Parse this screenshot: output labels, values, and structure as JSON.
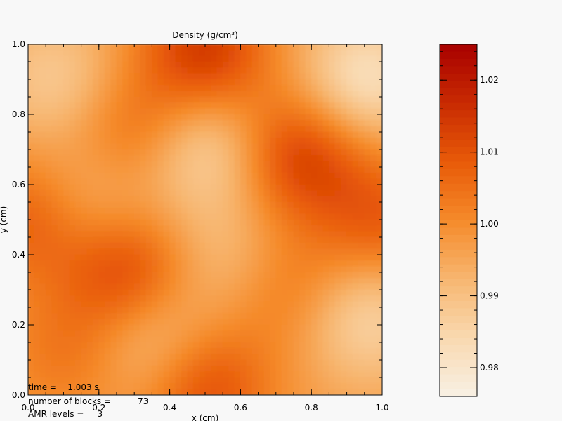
{
  "chart_data": {
    "type": "heatmap",
    "title": "Density (g/cm³)",
    "xlabel": "x (cm)",
    "ylabel": "y (cm)",
    "xlim": [
      0.0,
      1.0
    ],
    "ylim": [
      0.0,
      1.0
    ],
    "x_ticks": [
      "0.0",
      "0.2",
      "0.4",
      "0.6",
      "0.8",
      "1.0"
    ],
    "y_ticks": [
      "0.0",
      "0.2",
      "0.4",
      "0.6",
      "0.8",
      "1.0"
    ],
    "colorbar": {
      "range": [
        0.976,
        1.025
      ],
      "ticks": [
        "0.98",
        "0.99",
        "1.00",
        "1.01",
        "1.02"
      ],
      "tick_values": [
        0.98,
        0.99,
        1.0,
        1.01,
        1.02
      ]
    },
    "colormap": [
      "#f8f0e4",
      "#f9d9b0",
      "#f7b670",
      "#f58a2a",
      "#e85a08",
      "#c82a02",
      "#a80000"
    ],
    "features": [
      {
        "x": 0.5,
        "y": 0.98,
        "value": 1.014,
        "kind": "high"
      },
      {
        "x": 0.77,
        "y": 0.68,
        "value": 1.013,
        "kind": "high"
      },
      {
        "x": 0.28,
        "y": 0.35,
        "value": 1.012,
        "kind": "high"
      },
      {
        "x": 0.5,
        "y": 0.02,
        "value": 1.011,
        "kind": "high"
      },
      {
        "x": 0.3,
        "y": 0.75,
        "value": 1.006,
        "kind": "high"
      },
      {
        "x": 0.0,
        "y": 0.5,
        "value": 1.008,
        "kind": "high"
      },
      {
        "x": 1.0,
        "y": 0.5,
        "value": 1.008,
        "kind": "high"
      },
      {
        "x": 0.12,
        "y": 0.12,
        "value": 1.004,
        "kind": "high"
      },
      {
        "x": 0.75,
        "y": 0.3,
        "value": 1.004,
        "kind": "high"
      },
      {
        "x": 0.95,
        "y": 0.9,
        "value": 0.982,
        "kind": "low"
      },
      {
        "x": 0.5,
        "y": 0.7,
        "value": 0.985,
        "kind": "low"
      },
      {
        "x": 0.95,
        "y": 0.22,
        "value": 0.985,
        "kind": "low"
      },
      {
        "x": 0.08,
        "y": 0.9,
        "value": 0.988,
        "kind": "low"
      },
      {
        "x": 0.35,
        "y": 0.15,
        "value": 0.987,
        "kind": "low"
      },
      {
        "x": 0.18,
        "y": 0.55,
        "value": 0.99,
        "kind": "low"
      },
      {
        "x": 0.55,
        "y": 0.4,
        "value": 0.991,
        "kind": "low"
      }
    ]
  },
  "info": {
    "time_label": "time =",
    "time_value": "1.003 s",
    "blocks_label": "number of blocks =",
    "blocks_value": "73",
    "levels_label": "AMR levels =",
    "levels_value": "3"
  }
}
